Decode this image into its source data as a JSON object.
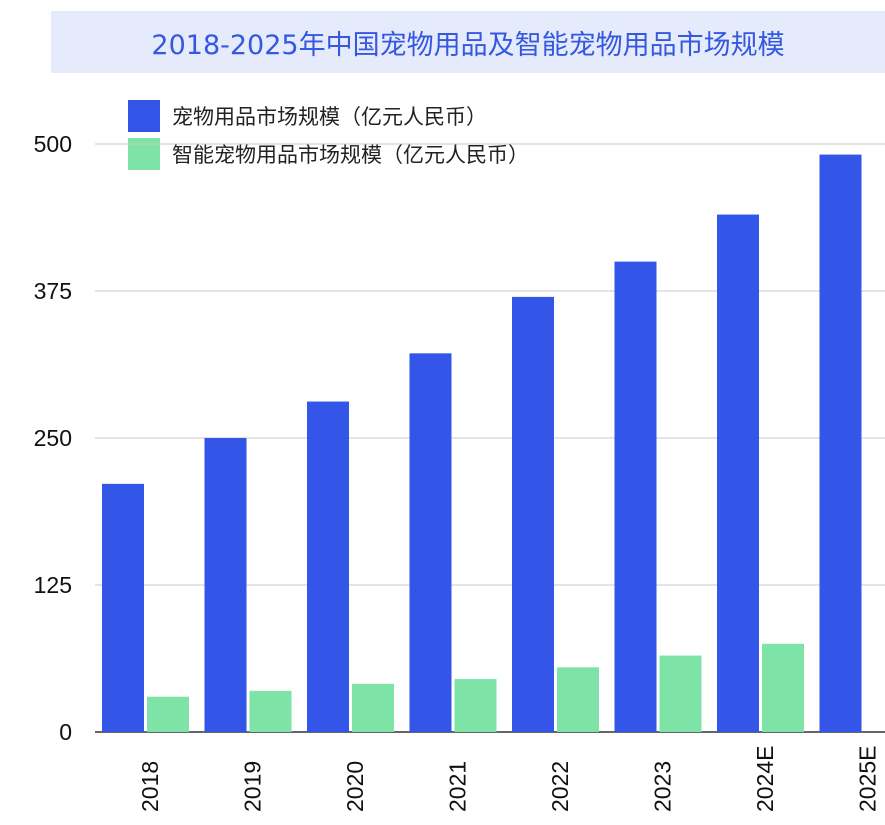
{
  "colors": {
    "series_a": "#3355e8",
    "series_b": "#7de3a6",
    "title": "#3558e0",
    "title_bg": "#e6ebfc",
    "grid": "#c9c9c9"
  },
  "chart_data": {
    "type": "bar",
    "title": "2018-2025年中国宠物用品及智能宠物用品市场规模",
    "xlabel": "",
    "ylabel": "",
    "categories": [
      "2018",
      "2019",
      "2020",
      "2021",
      "2022",
      "2023",
      "2024E",
      "2025E"
    ],
    "series": [
      {
        "name": "宠物用品市场规模（亿元人民币）",
        "values": [
          211,
          250,
          281,
          322,
          370,
          400,
          440,
          491
        ]
      },
      {
        "name": "智能宠物用品市场规模（亿元人民币）",
        "values": [
          30,
          35,
          41,
          45,
          55,
          65,
          75,
          0
        ]
      }
    ],
    "ylim": [
      0,
      500
    ],
    "yticks": [
      0,
      125,
      250,
      375,
      500
    ],
    "ytick_labels": [
      "0",
      "125",
      "250",
      "375",
      "500"
    ],
    "grid": true,
    "legend_position": "top-left"
  }
}
